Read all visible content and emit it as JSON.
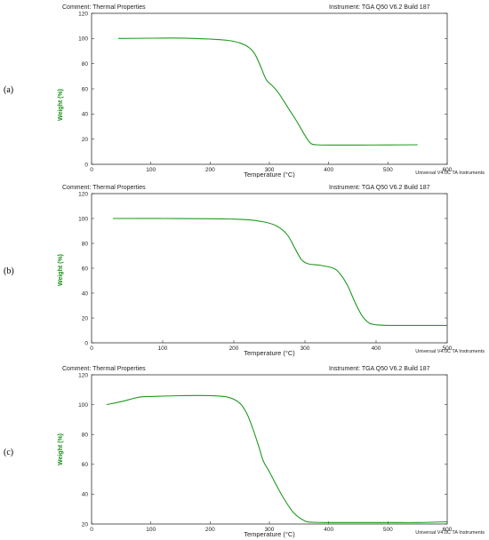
{
  "line_color": "#1f9a1f",
  "chart_data": [
    {
      "type": "line",
      "panel_label": "(a)",
      "comment": "Comment: Thermal Properties",
      "instrument": "Instrument: TGA Q50 V6.2 Build 187",
      "footer": "Universal V4.0C TA Instruments",
      "xlabel": "Temperature (°C)",
      "ylabel": "Weight (%)",
      "xlim": [
        0,
        600
      ],
      "ylim": [
        0,
        120
      ],
      "xticks": [
        0,
        100,
        200,
        300,
        400,
        500,
        600
      ],
      "yticks": [
        0,
        20,
        40,
        60,
        80,
        100,
        120
      ],
      "grid": false,
      "series": [
        {
          "x": [
            45,
            100,
            150,
            200,
            230,
            250,
            265,
            275,
            285,
            295,
            305,
            315,
            330,
            345,
            360,
            370,
            380,
            400,
            450,
            500,
            550
          ],
          "y": [
            100,
            100.2,
            100.3,
            99.5,
            98.5,
            96.5,
            93,
            88,
            78,
            67,
            62.5,
            57,
            46,
            35,
            23,
            16.5,
            15.5,
            15.3,
            15.3,
            15.4,
            15.5
          ]
        }
      ]
    },
    {
      "type": "line",
      "panel_label": "(b)",
      "comment": "Comment: Thermal Properties",
      "instrument": "Instrument: TGA Q50 V6.2 Build 187",
      "footer": "Universal V4.0C TA Instruments",
      "xlabel": "Temperature (°C)",
      "ylabel": "Weight (%)",
      "xlim": [
        0,
        500
      ],
      "ylim": [
        0,
        120
      ],
      "xticks": [
        0,
        100,
        200,
        300,
        400,
        500
      ],
      "yticks": [
        0,
        20,
        40,
        60,
        80,
        100,
        120
      ],
      "grid": false,
      "series": [
        {
          "x": [
            30,
            100,
            200,
            240,
            260,
            275,
            285,
            295,
            305,
            320,
            340,
            350,
            360,
            370,
            380,
            390,
            400,
            420,
            450,
            500
          ],
          "y": [
            100,
            100,
            99.5,
            97.5,
            94,
            87,
            77,
            67,
            63.5,
            62.5,
            60,
            55,
            46,
            33,
            22,
            16,
            14.5,
            14,
            14,
            14
          ]
        }
      ]
    },
    {
      "type": "line",
      "panel_label": "(c)",
      "comment": "Comment: Thermal Properties",
      "instrument": "Instrument: TGA Q50 V6.2 Build 187",
      "footer": "Universal V4.0C TA Instruments",
      "xlabel": "Temperature (°C)",
      "ylabel": "Weight (%)",
      "xlim": [
        0,
        600
      ],
      "ylim": [
        20,
        120
      ],
      "xticks": [
        0,
        100,
        200,
        300,
        400,
        500,
        600
      ],
      "yticks": [
        20,
        40,
        60,
        80,
        100,
        120
      ],
      "grid": false,
      "series": [
        {
          "x": [
            25,
            50,
            80,
            100,
            150,
            200,
            230,
            250,
            262,
            272,
            282,
            290,
            300,
            320,
            340,
            360,
            375,
            400,
            450,
            500,
            550,
            600
          ],
          "y": [
            100,
            102,
            105,
            105.5,
            106,
            106,
            105,
            101,
            94,
            84,
            72,
            62,
            55,
            40,
            28,
            22,
            21.2,
            21,
            21,
            21,
            21,
            21.5
          ]
        }
      ]
    }
  ]
}
